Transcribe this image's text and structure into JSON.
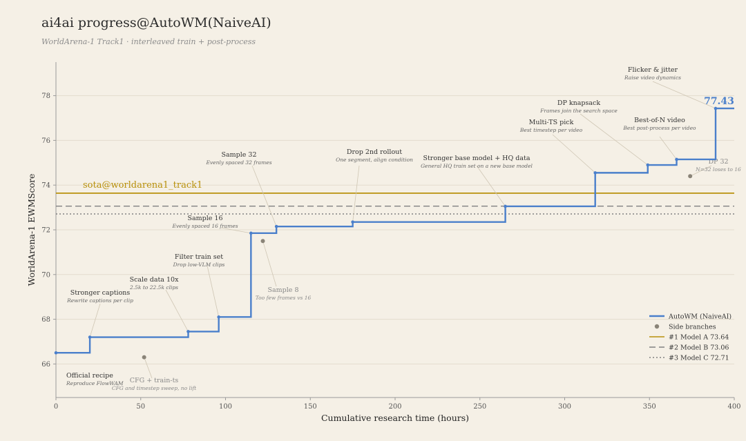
{
  "title": "ai4ai progress@AutoWM(NaiveAI)",
  "subtitle": "WorldArena-1 Track1  ·  interleaved train + post-process",
  "chart_data": {
    "type": "line",
    "xlabel": "Cumulative research time (hours)",
    "ylabel": "WorldArena-1 EWMScore",
    "xlim": [
      0,
      400
    ],
    "ylim": [
      64.5,
      79.5
    ],
    "xticks": [
      0,
      50,
      100,
      150,
      200,
      250,
      300,
      350,
      400
    ],
    "yticks": [
      66,
      68,
      70,
      72,
      74,
      76,
      78
    ],
    "grid": "horizontal",
    "series": [
      {
        "name": "AutoWM (NaiveAI)",
        "step": "post",
        "color": "#4a7fcb",
        "points": [
          [
            0,
            66.5
          ],
          [
            20,
            67.2
          ],
          [
            78,
            67.45
          ],
          [
            96,
            68.1
          ],
          [
            115,
            71.85
          ],
          [
            130,
            72.15
          ],
          [
            175,
            72.35
          ],
          [
            265,
            73.05
          ],
          [
            318,
            74.55
          ],
          [
            349,
            74.9
          ],
          [
            366,
            75.15
          ],
          [
            389,
            77.43
          ],
          [
            400,
            77.43
          ]
        ]
      }
    ],
    "side_branches": {
      "name": "Side branches",
      "color": "#8a8478",
      "points": [
        [
          52,
          66.3
        ],
        [
          122,
          71.5
        ],
        [
          374,
          74.4
        ]
      ]
    },
    "reference_lines": [
      {
        "legend": "#1 Model A  73.64",
        "value": 73.64,
        "style": "solid",
        "color": "#b8900a"
      },
      {
        "legend": "#2 Model B  73.06",
        "value": 73.06,
        "style": "dashed",
        "color": "#808080"
      },
      {
        "legend": "#3 Model C  72.71",
        "value": 72.71,
        "style": "dotted",
        "color": "#808080"
      }
    ],
    "sota_label": "sota@worldarena1_track1",
    "final_value_label": "77.43",
    "legend_position": "lower-right",
    "annotations": [
      {
        "title": "Official recipe",
        "subtitle": "Reproduce FlowWAM",
        "x": 0,
        "y": 66.5,
        "side": false
      },
      {
        "title": "Stronger captions",
        "subtitle": "Rewrite captions per clip",
        "x": 20,
        "y": 67.2,
        "side": false
      },
      {
        "title": "Scale data 10x",
        "subtitle": "2.5k to 22.5k clips",
        "x": 78,
        "y": 67.45,
        "side": false
      },
      {
        "title": "Filter train set",
        "subtitle": "Drop low-VLM clips",
        "x": 96,
        "y": 68.1,
        "side": false
      },
      {
        "title": "Sample 16",
        "subtitle": "Evenly spaced 16 frames",
        "x": 115,
        "y": 71.85,
        "side": false
      },
      {
        "title": "Sample 32",
        "subtitle": "Evenly spaced 32 frames",
        "x": 130,
        "y": 72.15,
        "side": false
      },
      {
        "title": "Drop 2nd rollout",
        "subtitle": "One segment, align condition",
        "x": 175,
        "y": 72.35,
        "side": false
      },
      {
        "title": "Stronger base model + HQ data",
        "subtitle": "General HQ train set on a new base model",
        "x": 265,
        "y": 73.05,
        "side": false
      },
      {
        "title": "Multi-TS pick",
        "subtitle": "Best timestep per video",
        "x": 318,
        "y": 74.55,
        "side": false
      },
      {
        "title": "DP knapsack",
        "subtitle": "Frames join the search space",
        "x": 349,
        "y": 74.9,
        "side": false
      },
      {
        "title": "Best-of-N video",
        "subtitle": "Best post-process per video",
        "x": 366,
        "y": 75.15,
        "side": false
      },
      {
        "title": "Flicker & jitter",
        "subtitle": "Raise video dynamics",
        "x": 389,
        "y": 77.43,
        "side": false
      },
      {
        "title": "CFG + train-ts",
        "subtitle": "CFG and timestep sweep, no lift",
        "x": 52,
        "y": 66.3,
        "side": true
      },
      {
        "title": "Sample 8",
        "subtitle": "Too few frames vs 16",
        "x": 122,
        "y": 71.5,
        "side": true
      },
      {
        "title": "DP 32",
        "subtitle": "N=32 loses to 16",
        "x": 374,
        "y": 74.4,
        "side": true
      }
    ]
  }
}
